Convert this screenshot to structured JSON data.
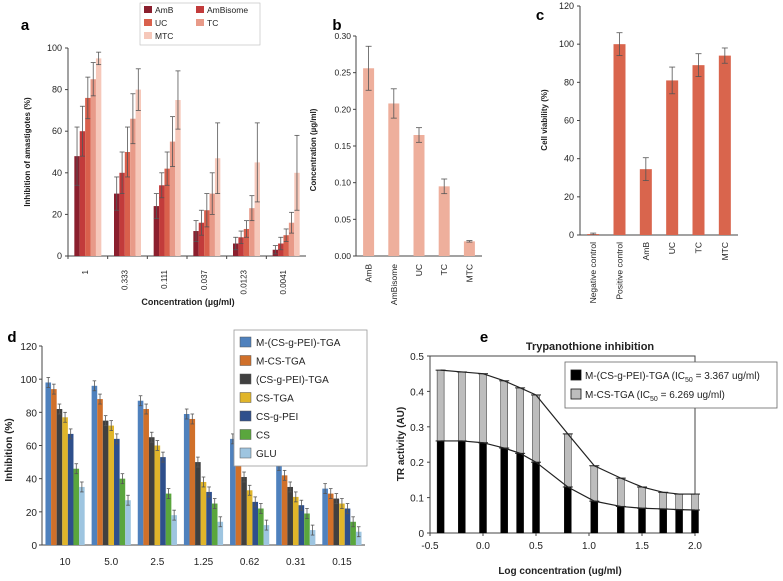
{
  "chart_data": [
    {
      "panel": "a",
      "type": "bar",
      "xlabel": "Concentration (µg/ml)",
      "ylabel": "Inhibition of amastigotes (%)",
      "ylim": [
        0,
        100
      ],
      "yticks": [
        0,
        20,
        40,
        60,
        80,
        100
      ],
      "categories": [
        "1",
        "0.333",
        "0.111",
        "0.037",
        "0.0123",
        "0.0041"
      ],
      "legend": "top-left",
      "series": [
        {
          "name": "AmB",
          "color": "#8b1f2e",
          "values": [
            48,
            30,
            24,
            12,
            6,
            3
          ],
          "errors": [
            14,
            8,
            6,
            5,
            3,
            2
          ]
        },
        {
          "name": "AmBisome",
          "color": "#c23b3b",
          "values": [
            60,
            40,
            34,
            16,
            9,
            6
          ],
          "errors": [
            12,
            10,
            6,
            6,
            3,
            3
          ]
        },
        {
          "name": "UC",
          "color": "#d9604c",
          "values": [
            76,
            50,
            42,
            22,
            13,
            10
          ],
          "errors": [
            10,
            12,
            8,
            8,
            4,
            3
          ]
        },
        {
          "name": "TC",
          "color": "#e89a88",
          "values": [
            85,
            66,
            55,
            30,
            23,
            16
          ],
          "errors": [
            8,
            12,
            12,
            10,
            6,
            5
          ]
        },
        {
          "name": "MTC",
          "color": "#f6c8ba",
          "values": [
            95,
            80,
            75,
            47,
            45,
            40
          ],
          "errors": [
            3,
            10,
            14,
            17,
            19,
            18
          ]
        }
      ]
    },
    {
      "panel": "b",
      "type": "bar",
      "ylabel": "Concentration (µg/ml)",
      "ylim": [
        0,
        0.3
      ],
      "yticks": [
        "0.00",
        "0.05",
        "0.10",
        "0.15",
        "0.20",
        "0.25",
        "0.30"
      ],
      "categories": [
        "AmB",
        "AmBisome",
        "UC",
        "TC",
        "MTC"
      ],
      "values": [
        0.256,
        0.208,
        0.165,
        0.095,
        0.02
      ],
      "errors": [
        0.03,
        0.02,
        0.01,
        0.01,
        0.001
      ],
      "color": "#eeaf9c"
    },
    {
      "panel": "c",
      "type": "bar",
      "ylabel": "Cell viability (%)",
      "ylim": [
        0,
        120
      ],
      "yticks": [
        0,
        20,
        40,
        60,
        80,
        100,
        120
      ],
      "categories": [
        "Negative control",
        "Positive control",
        "AmB",
        "UC",
        "TC",
        "MTC"
      ],
      "values": [
        0.5,
        100,
        34.5,
        81,
        89,
        94
      ],
      "errors": [
        0.5,
        6,
        6,
        7,
        6,
        4
      ],
      "color": "#d9654d"
    },
    {
      "panel": "d",
      "type": "bar",
      "ylabel": "Inhibition (%)",
      "ylim": [
        0,
        120
      ],
      "yticks": [
        0,
        20,
        40,
        60,
        80,
        100,
        120
      ],
      "categories": [
        "10",
        "5.0",
        "2.5",
        "1.25",
        "0.62",
        "0.31",
        "0.15"
      ],
      "legend": "top-right",
      "series": [
        {
          "name": "M-(CS-g-PEI)-TGA",
          "color": "#4f81bd",
          "values": [
            98,
            96,
            87,
            79,
            64,
            48,
            34
          ]
        },
        {
          "name": "M-CS-TGA",
          "color": "#d0702a",
          "values": [
            94,
            88,
            82,
            76,
            59,
            42,
            31
          ]
        },
        {
          "name": "(CS-g-PEI)-TGA",
          "color": "#404040",
          "values": [
            82,
            75,
            65,
            50,
            41,
            35,
            28
          ]
        },
        {
          "name": "CS-TGA",
          "color": "#e0b52a",
          "values": [
            77,
            72,
            60,
            38,
            33,
            29,
            25
          ]
        },
        {
          "name": "CS-g-PEI",
          "color": "#2e4f8c",
          "values": [
            67,
            64,
            53,
            32,
            26,
            24,
            22
          ]
        },
        {
          "name": "CS",
          "color": "#5aa63d",
          "values": [
            46,
            40,
            31,
            25,
            22,
            19,
            14
          ]
        },
        {
          "name": "GLU",
          "color": "#9ec5e0",
          "values": [
            35,
            27,
            18,
            14,
            12,
            9,
            8
          ]
        }
      ]
    },
    {
      "panel": "e",
      "type": "line",
      "title": "Trypanothione inhibition",
      "xlabel": "Log concentration (ug/ml)",
      "ylabel": "TR activity (AU)",
      "xlim": [
        -0.5,
        2.0
      ],
      "ylim": [
        0,
        0.5
      ],
      "xticks": [
        "-0.5",
        "0.0",
        "0.5",
        "1.0",
        "1.5",
        "2.0"
      ],
      "yticks": [
        "0",
        "0.1",
        "0.2",
        "0.3",
        "0.4",
        "0.5"
      ],
      "x": [
        -0.4,
        -0.2,
        0.0,
        0.2,
        0.35,
        0.5,
        0.8,
        1.05,
        1.3,
        1.5,
        1.7,
        1.85,
        2.0
      ],
      "series": [
        {
          "name": "M-(CS-g-PEI)-TGA",
          "ic50_prefix": "M-(CS-g-PEI)-TGA (IC",
          "ic50_suffix": " = 3.367 ug/ml)",
          "fill": "#000000",
          "values": [
            0.26,
            0.26,
            0.255,
            0.24,
            0.225,
            0.2,
            0.13,
            0.09,
            0.075,
            0.07,
            0.068,
            0.066,
            0.065
          ]
        },
        {
          "name": "M-CS-TGA",
          "ic50_prefix": "M-CS-TGA (IC",
          "ic50_suffix": " = 6.269 ug/ml)",
          "fill": "#bdbdbd",
          "values": [
            0.46,
            0.455,
            0.45,
            0.43,
            0.41,
            0.39,
            0.28,
            0.19,
            0.155,
            0.13,
            0.115,
            0.11,
            0.11
          ]
        }
      ],
      "ic50_subscript": "50"
    }
  ],
  "panel_letters": [
    "a",
    "b",
    "c",
    "d",
    "e"
  ]
}
